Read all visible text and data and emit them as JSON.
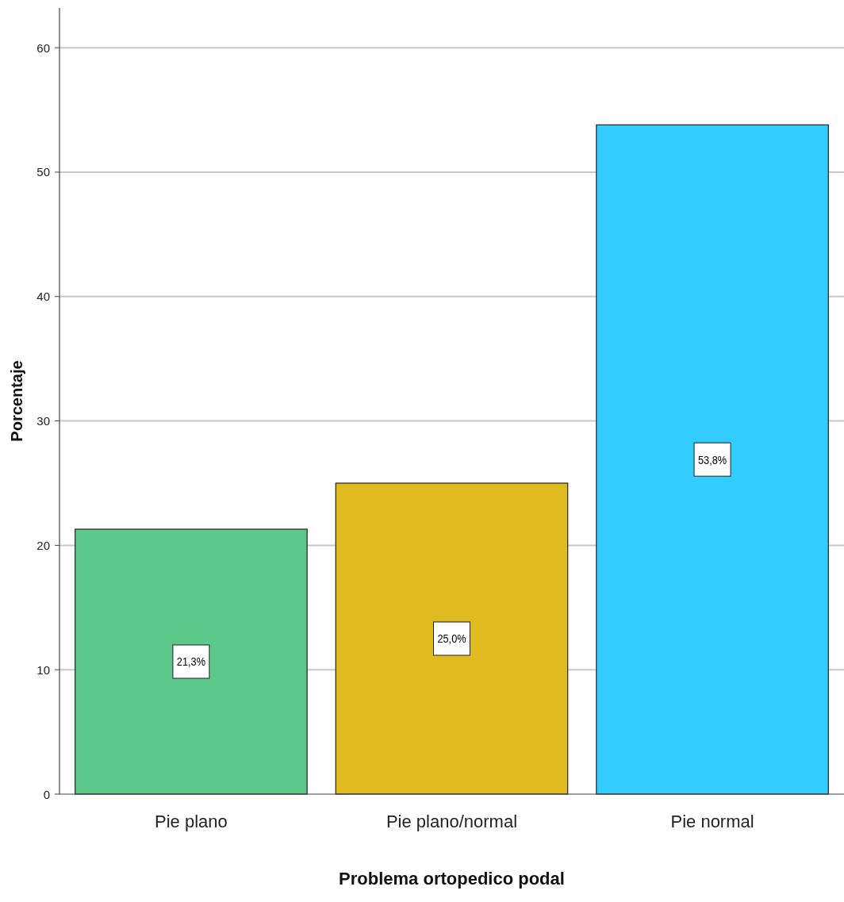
{
  "chart_data": {
    "type": "bar",
    "xlabel": "Problema ortopedico podal",
    "ylabel": "Porcentaje",
    "categories": [
      "Pie plano",
      "Pie plano/normal",
      "Pie normal"
    ],
    "values": [
      21.3,
      25.0,
      53.8
    ],
    "colors": [
      "#5cc98a",
      "#dfbb1f",
      "#33ccff"
    ],
    "value_labels": [
      "21,3%",
      "25,0%",
      "53,8%"
    ],
    "ylim": [
      0,
      63.2
    ],
    "yticks": [
      0,
      10,
      20,
      30,
      40,
      50,
      60
    ],
    "grid": "y"
  }
}
